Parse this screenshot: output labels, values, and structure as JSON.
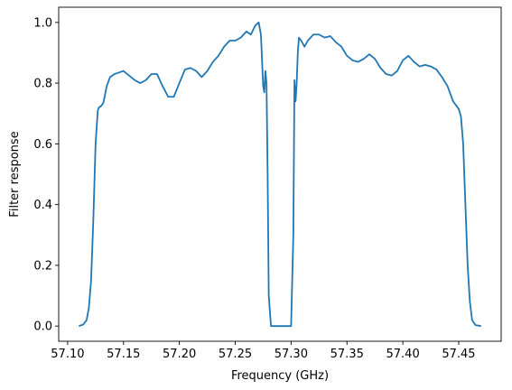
{
  "chart_data": {
    "type": "line",
    "title": "",
    "xlabel": "Frequency (GHz)",
    "ylabel": "Filter response",
    "xlim": [
      57.092,
      57.488
    ],
    "ylim": [
      -0.05,
      1.05
    ],
    "xticks": [
      57.1,
      57.15,
      57.2,
      57.25,
      57.3,
      57.35,
      57.4,
      57.45
    ],
    "xtick_labels": [
      "57.10",
      "57.15",
      "57.20",
      "57.25",
      "57.30",
      "57.35",
      "57.40",
      "57.45"
    ],
    "yticks": [
      0.0,
      0.2,
      0.4,
      0.6,
      0.8,
      1.0
    ],
    "ytick_labels": [
      "0.0",
      "0.2",
      "0.4",
      "0.6",
      "0.8",
      "1.0"
    ],
    "grid": false,
    "color": "#1f77b4",
    "series": [
      {
        "x": [
          57.11,
          57.114,
          57.117,
          57.119,
          57.121,
          57.123,
          57.125,
          57.127,
          57.128,
          57.13,
          57.132,
          57.135,
          57.138,
          57.142,
          57.146,
          57.15,
          57.155,
          57.16,
          57.165,
          57.17,
          57.175,
          57.18,
          57.185,
          57.19,
          57.195,
          57.2,
          57.205,
          57.21,
          57.215,
          57.22,
          57.225,
          57.23,
          57.235,
          57.24,
          57.245,
          57.25,
          57.255,
          57.26,
          57.264,
          57.268,
          57.271,
          57.273,
          57.275,
          57.276,
          57.277,
          57.278,
          57.279,
          57.28,
          57.282,
          57.285,
          57.29,
          57.295,
          57.3,
          57.302,
          57.303,
          57.304,
          57.305,
          57.306,
          57.307,
          57.309,
          57.312,
          57.315,
          57.32,
          57.325,
          57.33,
          57.335,
          57.34,
          57.345,
          57.35,
          57.355,
          57.36,
          57.365,
          57.37,
          57.375,
          57.38,
          57.385,
          57.39,
          57.395,
          57.4,
          57.405,
          57.41,
          57.415,
          57.42,
          57.425,
          57.43,
          57.435,
          57.44,
          57.445,
          57.448,
          57.45,
          57.452,
          57.454,
          57.456,
          57.458,
          57.46,
          57.462,
          57.465,
          57.47
        ],
        "y": [
          0.0,
          0.005,
          0.02,
          0.06,
          0.15,
          0.35,
          0.6,
          0.71,
          0.72,
          0.725,
          0.735,
          0.79,
          0.82,
          0.83,
          0.835,
          0.84,
          0.825,
          0.81,
          0.8,
          0.81,
          0.83,
          0.83,
          0.79,
          0.755,
          0.755,
          0.8,
          0.845,
          0.85,
          0.84,
          0.82,
          0.84,
          0.87,
          0.89,
          0.92,
          0.94,
          0.94,
          0.95,
          0.97,
          0.96,
          0.99,
          1.0,
          0.96,
          0.79,
          0.77,
          0.84,
          0.8,
          0.5,
          0.1,
          0.0,
          0.0,
          0.0,
          0.0,
          0.0,
          0.3,
          0.81,
          0.74,
          0.8,
          0.9,
          0.95,
          0.94,
          0.92,
          0.94,
          0.96,
          0.96,
          0.95,
          0.955,
          0.935,
          0.92,
          0.89,
          0.875,
          0.87,
          0.88,
          0.895,
          0.88,
          0.85,
          0.83,
          0.825,
          0.84,
          0.875,
          0.89,
          0.87,
          0.855,
          0.86,
          0.855,
          0.845,
          0.82,
          0.79,
          0.74,
          0.725,
          0.715,
          0.69,
          0.6,
          0.4,
          0.2,
          0.08,
          0.02,
          0.003,
          0.0
        ]
      }
    ]
  }
}
